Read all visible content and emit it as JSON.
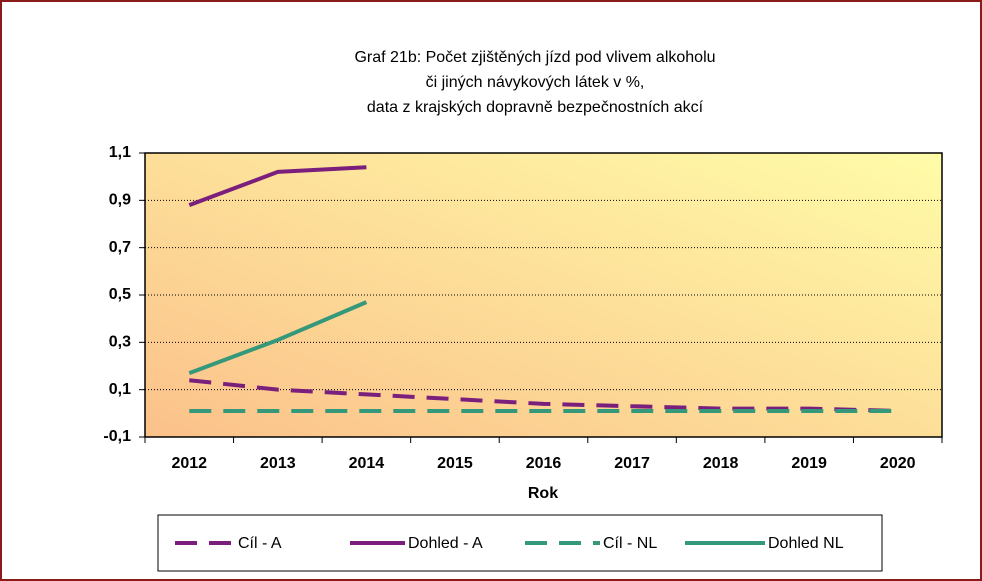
{
  "chart_data": {
    "type": "line",
    "title": [
      "Graf 21b: Počet zjištěných jízd pod vlivem alkoholu",
      "či jiných návykových látek v %,",
      "data z krajských dopravně bezpečnostních akcí"
    ],
    "x_label": "Rok",
    "categories": [
      "2012",
      "2013",
      "2014",
      "2015",
      "2016",
      "2017",
      "2018",
      "2019",
      "2020"
    ],
    "series": [
      {
        "name": "Cíl - A",
        "color": "#7b1f7c",
        "dashed": true,
        "values": [
          0.14,
          0.1,
          0.08,
          0.06,
          0.04,
          0.03,
          0.02,
          0.02,
          0.01
        ]
      },
      {
        "name": "Dohled - A",
        "color": "#7b1f7c",
        "dashed": false,
        "values": [
          0.88,
          1.02,
          1.04,
          null,
          null,
          null,
          null,
          null,
          null
        ]
      },
      {
        "name": "Cíl - NL",
        "color": "#36987a",
        "dashed": true,
        "values": [
          0.01,
          0.01,
          0.01,
          0.01,
          0.01,
          0.01,
          0.01,
          0.01,
          0.01
        ]
      },
      {
        "name": "Dohled NL",
        "color": "#36987a",
        "dashed": false,
        "values": [
          0.17,
          0.31,
          0.47,
          null,
          null,
          null,
          null,
          null,
          null
        ]
      }
    ],
    "ylim": [
      -0.1,
      1.1
    ],
    "yticks": [
      {
        "value": -0.1,
        "label": "-0,1"
      },
      {
        "value": 0.1,
        "label": "0,1"
      },
      {
        "value": 0.3,
        "label": "0,3"
      },
      {
        "value": 0.5,
        "label": "0,5"
      },
      {
        "value": 0.7,
        "label": "0,7"
      },
      {
        "value": 0.9,
        "label": "0,9"
      },
      {
        "value": 1.1,
        "label": "1,1"
      }
    ],
    "grid": true,
    "legend": "bottom"
  }
}
